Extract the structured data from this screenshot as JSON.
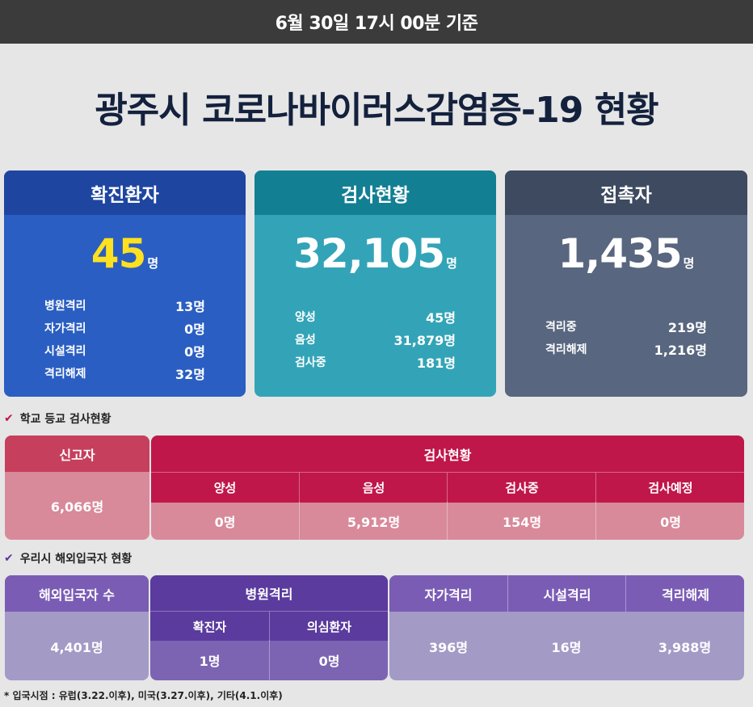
{
  "header": {
    "timestamp": "6월 30일 17시 00분 기준"
  },
  "title": "광주시 코로나바이러스감염증-19 현황",
  "cards": {
    "confirmed": {
      "title": "확진환자",
      "total": "45",
      "unit": "명",
      "rows": [
        {
          "label": "병원격리",
          "value": "13명"
        },
        {
          "label": "자가격리",
          "value": "0명"
        },
        {
          "label": "시설격리",
          "value": "0명"
        },
        {
          "label": "격리해제",
          "value": "32명"
        }
      ],
      "accent_color": "#ffe11f"
    },
    "tests": {
      "title": "검사현황",
      "total": "32,105",
      "unit": "명",
      "rows": [
        {
          "label": "양성",
          "value": "45명"
        },
        {
          "label": "음성",
          "value": "31,879명"
        },
        {
          "label": "검사중",
          "value": "181명"
        }
      ]
    },
    "contacts": {
      "title": "접촉자",
      "total": "1,435",
      "unit": "명",
      "rows": [
        {
          "label": "격리중",
          "value": "219명"
        },
        {
          "label": "격리해제",
          "value": "1,216명"
        }
      ]
    }
  },
  "school": {
    "section_label": "학교 등교 검사현황",
    "reporters_header": "신고자",
    "reporters_value": "6,066명",
    "tests_header": "검사현황",
    "columns": [
      {
        "label": "양성",
        "value": "0명"
      },
      {
        "label": "음성",
        "value": "5,912명"
      },
      {
        "label": "검사중",
        "value": "154명"
      },
      {
        "label": "검사예정",
        "value": "0명"
      }
    ]
  },
  "overseas": {
    "section_label": "우리시 해외입국자 현황",
    "arrivals_header": "해외입국자 수",
    "arrivals_value": "4,401명",
    "hospital_header": "병원격리",
    "hospital_cols": [
      {
        "label": "확진자",
        "value": "1명"
      },
      {
        "label": "의심환자",
        "value": "0명"
      }
    ],
    "other_cols": [
      {
        "label": "자가격리",
        "value": "396명"
      },
      {
        "label": "시설격리",
        "value": "16명"
      },
      {
        "label": "격리해제",
        "value": "3,988명"
      }
    ]
  },
  "footnote": "* 입국시점 : 유럽(3.22.이후), 미국(3.27.이후), 기타(4.1.이후)",
  "icons": {
    "check": "check-icon"
  }
}
